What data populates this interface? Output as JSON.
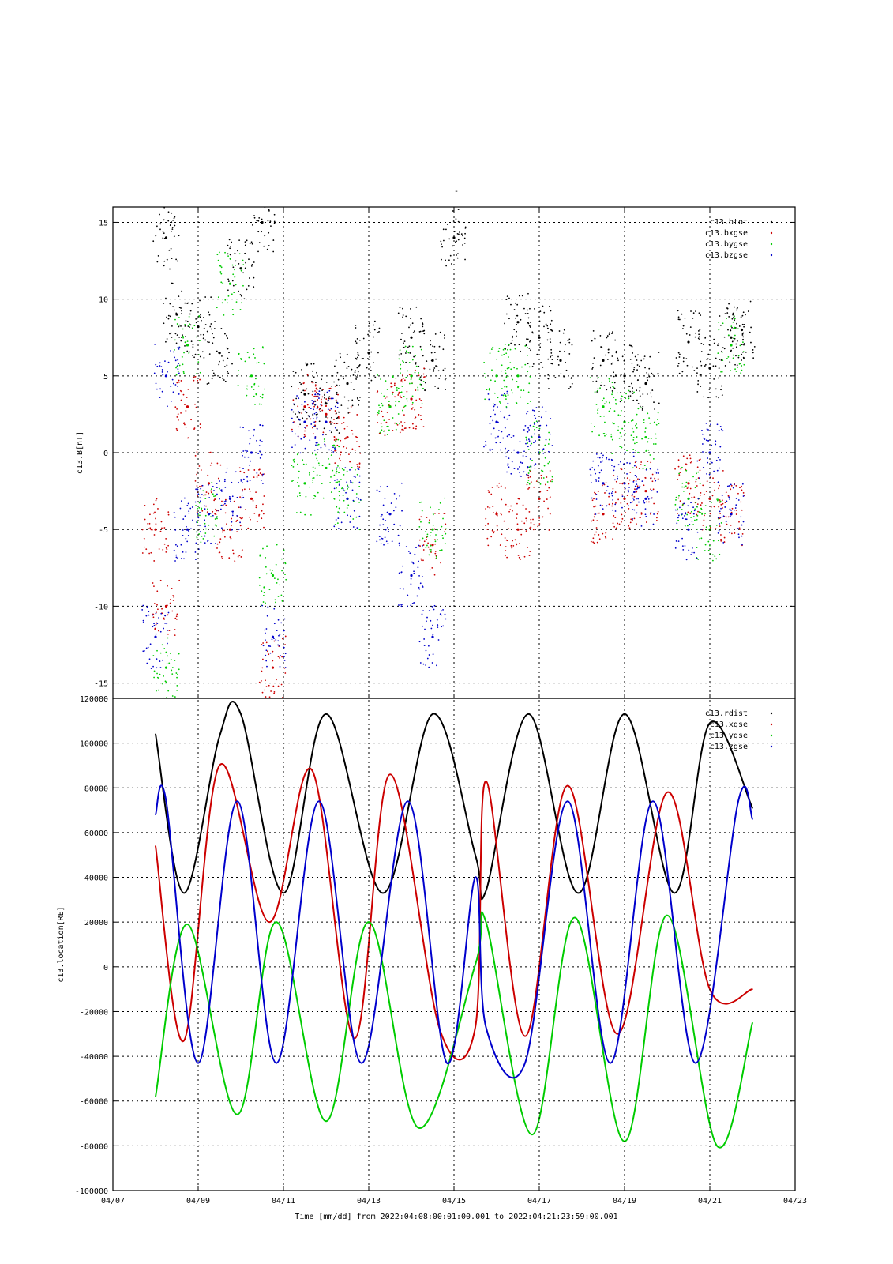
{
  "page_title": "-",
  "x_axis": {
    "label": "Time [mm/dd]  from 2022:04:08:00:01:00.001  to  2022:04:21:23:59:00.001",
    "ticks": [
      "04/07",
      "04/09",
      "04/11",
      "04/13",
      "04/15",
      "04/17",
      "04/19",
      "04/21",
      "04/23"
    ]
  },
  "chart_data": [
    {
      "type": "scatter",
      "ylabel": "c13.B[nT]",
      "ylim": [
        -16,
        16
      ],
      "yticks": [
        "15",
        "10",
        "5",
        "0",
        "-5",
        "-10",
        "-15"
      ],
      "grid": true,
      "legend_placement": "top-right",
      "series": [
        {
          "name": "c13.btot",
          "color": "#000000",
          "x": [
            "04/08 06:00",
            "04/08 12:00",
            "04/09 00:00",
            "04/09 12:00",
            "04/10 00:00",
            "04/10 12:00",
            "04/11 12:00",
            "04/12 00:00",
            "04/12 12:00",
            "04/13 00:00",
            "04/14 00:00",
            "04/14 12:00",
            "04/15 00:00",
            "04/16 12:00",
            "04/17 00:00",
            "04/17 12:00",
            "04/18 12:00",
            "04/19 00:00",
            "04/19 12:00",
            "04/20 12:00",
            "04/21 00:00",
            "04/21 12:00",
            "04/21 18:00"
          ],
          "y": [
            14,
            9,
            8.2,
            6.5,
            12,
            15,
            3.8,
            3.2,
            4.5,
            6.5,
            7.5,
            6,
            14,
            8.5,
            7.5,
            6,
            6,
            5,
            4.5,
            7.2,
            5.5,
            7.5,
            8
          ]
        },
        {
          "name": "c13.bxgse",
          "color": "#cc0000",
          "x": [
            "04/08 00:00",
            "04/08 06:00",
            "04/08 18:00",
            "04/09 06:00",
            "04/09 18:00",
            "04/10 06:00",
            "04/10 18:00",
            "04/11 12:00",
            "04/12 00:00",
            "04/12 12:00",
            "04/13 12:00",
            "04/14 00:00",
            "04/14 12:00",
            "04/16 00:00",
            "04/16 12:00",
            "04/17 00:00",
            "04/18 12:00",
            "04/19 00:00",
            "04/19 12:00",
            "04/20 12:00",
            "04/21 00:00",
            "04/21 12:00"
          ],
          "y": [
            -5,
            -10,
            3,
            -2,
            -5,
            -3,
            -14,
            3,
            2.5,
            1,
            3,
            3.5,
            -6,
            -4,
            -5,
            -3,
            -4,
            -3,
            -2.5,
            -2,
            -3,
            -4
          ]
        },
        {
          "name": "c13.bygse",
          "color": "#00cc00",
          "x": [
            "04/08 06:00",
            "04/08 18:00",
            "04/09 06:00",
            "04/09 18:00",
            "04/10 06:00",
            "04/10 18:00",
            "04/11 12:00",
            "04/12 00:00",
            "04/12 12:00",
            "04/13 12:00",
            "04/14 00:00",
            "04/14 12:00",
            "04/16 00:00",
            "04/16 12:00",
            "04/17 00:00",
            "04/18 12:00",
            "04/19 00:00",
            "04/19 12:00",
            "04/20 12:00",
            "04/21 00:00",
            "04/21 12:00"
          ],
          "y": [
            -14,
            7,
            -4,
            11,
            5,
            -8,
            -2,
            -1,
            -3,
            3,
            5,
            -5,
            5,
            5,
            0,
            3,
            2,
            1,
            -3,
            -5,
            7
          ]
        },
        {
          "name": "c13.bzgse",
          "color": "#0000cc",
          "x": [
            "04/08 00:00",
            "04/08 06:00",
            "04/08 18:00",
            "04/09 06:00",
            "04/09 18:00",
            "04/10 06:00",
            "04/10 18:00",
            "04/11 12:00",
            "04/12 00:00",
            "04/12 12:00",
            "04/13 12:00",
            "04/14 00:00",
            "04/14 12:00",
            "04/16 00:00",
            "04/16 12:00",
            "04/17 00:00",
            "04/18 12:00",
            "04/19 00:00",
            "04/19 12:00",
            "04/20 12:00",
            "04/21 00:00",
            "04/21 12:00"
          ],
          "y": [
            -12,
            5,
            -5,
            -4,
            -3,
            0,
            -12,
            2,
            2,
            -3,
            -4,
            -8,
            -12,
            2,
            0,
            1,
            -2,
            -2,
            -3,
            -5,
            0,
            -4
          ]
        }
      ]
    },
    {
      "type": "line",
      "ylabel": "c13.location[RE]",
      "ylim": [
        -100000,
        120000
      ],
      "yticks": [
        "120000",
        "100000",
        "80000",
        "60000",
        "40000",
        "20000",
        "0",
        "-20000",
        "-40000",
        "-60000",
        "-80000",
        "-100000"
      ],
      "grid": true,
      "legend_placement": "top-right",
      "series": [
        {
          "name": "c13.rdist",
          "color": "#000000",
          "x": [
            "04/08 00:00",
            "04/08 16:00",
            "04/09 12:00",
            "04/10 00:00",
            "04/11 00:00",
            "04/12 00:00",
            "04/13 08:00",
            "04/14 12:00",
            "04/15 12:00",
            "04/15 18:00",
            "04/16 18:00",
            "04/17 22:00",
            "04/19 00:00",
            "04/20 04:00",
            "04/21 00:00",
            "04/21 23:59"
          ],
          "y": [
            104000,
            33000,
            103000,
            113000,
            33000,
            113000,
            33000,
            113000,
            50000,
            34000,
            113000,
            33000,
            113000,
            33000,
            109000,
            71000
          ]
        },
        {
          "name": "c13.xgse",
          "color": "#cc0000",
          "x": [
            "04/08 00:00",
            "04/08 16:00",
            "04/09 12:00",
            "04/10 16:00",
            "04/11 16:00",
            "04/12 16:00",
            "04/13 12:00",
            "04/14 16:00",
            "04/15 12:00",
            "04/15 18:00",
            "04/16 16:00",
            "04/17 16:00",
            "04/18 20:00",
            "04/20 00:00",
            "04/21 00:00",
            "04/21 23:59"
          ],
          "y": [
            54000,
            -33000,
            90000,
            20000,
            88000,
            -32000,
            86000,
            -28000,
            -27000,
            83000,
            -31000,
            81000,
            -30000,
            78000,
            -10000,
            -10000
          ]
        },
        {
          "name": "c13.ygse",
          "color": "#00cc00",
          "x": [
            "04/08 00:00",
            "04/08 18:00",
            "04/09 22:00",
            "04/10 20:00",
            "04/12 00:00",
            "04/13 00:00",
            "04/14 04:00",
            "04/15 12:00",
            "04/15 18:00",
            "04/16 20:00",
            "04/17 20:00",
            "04/19 00:00",
            "04/20 00:00",
            "04/21 04:00",
            "04/21 23:59"
          ],
          "y": [
            -58000,
            19000,
            -66000,
            20000,
            -69000,
            20000,
            -72000,
            1000,
            20000,
            -75000,
            22000,
            -78000,
            23000,
            -80000,
            -25000
          ]
        },
        {
          "name": "c13.zgse",
          "color": "#0000cc",
          "x": [
            "04/08 00:00",
            "04/08 06:00",
            "04/09 00:00",
            "04/09 22:00",
            "04/10 20:00",
            "04/11 20:00",
            "04/12 20:00",
            "04/13 22:00",
            "04/14 20:00",
            "04/15 12:00",
            "04/15 18:00",
            "04/16 16:00",
            "04/17 16:00",
            "04/18 16:00",
            "04/19 16:00",
            "04/20 16:00",
            "04/21 16:00",
            "04/21 23:59"
          ],
          "y": [
            68000,
            74000,
            -43000,
            74000,
            -43000,
            74000,
            -43000,
            74000,
            -43000,
            40000,
            -27000,
            -43000,
            74000,
            -43000,
            74000,
            -43000,
            74000,
            66000
          ]
        }
      ]
    }
  ]
}
